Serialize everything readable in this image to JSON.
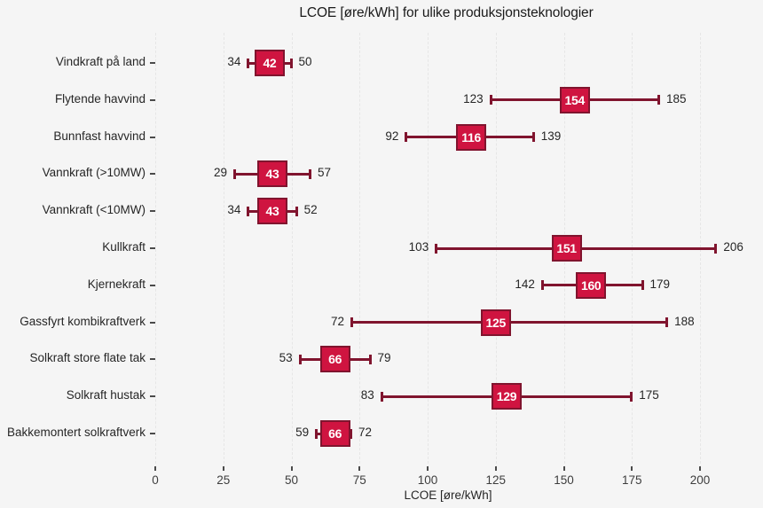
{
  "chart_data": {
    "type": "errorbar_range",
    "title": "LCOE [øre/kWh] for ulike produksjonsteknologier",
    "xlabel": "LCOE [øre/kWh]",
    "x_ticks": [
      0,
      25,
      50,
      75,
      100,
      125,
      150,
      175,
      200
    ],
    "xlim": [
      0,
      218
    ],
    "grid": "vertical-dashed",
    "legend": "none",
    "rows": [
      {
        "label": "Vindkraft på land",
        "min": 34,
        "center": 42,
        "max": 50
      },
      {
        "label": "Flytende havvind",
        "min": 123,
        "center": 154,
        "max": 185
      },
      {
        "label": "Bunnfast havvind",
        "min": 92,
        "center": 116,
        "max": 139
      },
      {
        "label": "Vannkraft (>10MW)",
        "min": 29,
        "center": 43,
        "max": 57
      },
      {
        "label": "Vannkraft (<10MW)",
        "min": 34,
        "center": 43,
        "max": 52
      },
      {
        "label": "Kullkraft",
        "min": 103,
        "center": 151,
        "max": 206
      },
      {
        "label": "Kjernekraft",
        "min": 142,
        "center": 160,
        "max": 179
      },
      {
        "label": "Gassfyrt kombikraftverk",
        "min": 72,
        "center": 125,
        "max": 188
      },
      {
        "label": "Solkraft store flate tak",
        "min": 53,
        "center": 66,
        "max": 79
      },
      {
        "label": "Solkraft hustak",
        "min": 83,
        "center": 129,
        "max": 175
      },
      {
        "label": "Bakkemontert solkraftverk",
        "min": 59,
        "center": 66,
        "max": 72
      }
    ],
    "colors": {
      "background": "#f5f5f5",
      "grid": "#e6e6e6",
      "box_fill": "#cf1440",
      "box_border": "#80142e",
      "whisker": "#80142e",
      "box_text": "#ffffff",
      "title_text": "#1a1a1a",
      "label_text": "#262626",
      "axis_text": "#3d3d3d",
      "tick_mark": "#4a4a4a"
    }
  }
}
